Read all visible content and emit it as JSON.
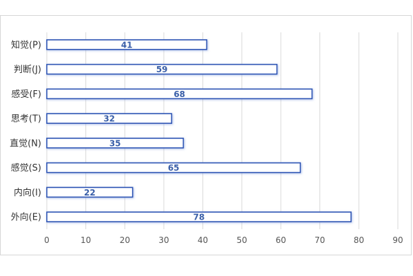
{
  "chart_data": {
    "type": "bar",
    "orientation": "horizontal",
    "categories": [
      "知觉(P)",
      "判断(J)",
      "感受(F)",
      "思考(T)",
      "直觉(N)",
      "感觉(S)",
      "内向(I)",
      "外向(E)"
    ],
    "values": [
      41,
      59,
      68,
      32,
      35,
      65,
      22,
      78
    ],
    "title": "",
    "xlabel": "",
    "ylabel": "",
    "xlim": [
      0,
      90
    ],
    "xticks": [
      0,
      10,
      20,
      30,
      40,
      50,
      60,
      70,
      80,
      90
    ],
    "grid": true,
    "legend": "none",
    "data_labels": true
  },
  "colors": {
    "bar_fill": "#ffffff",
    "bar_border": "#2f55b4",
    "data_label": "#3a5fa8",
    "grid": "#d9d9d9",
    "text": "#333333"
  }
}
